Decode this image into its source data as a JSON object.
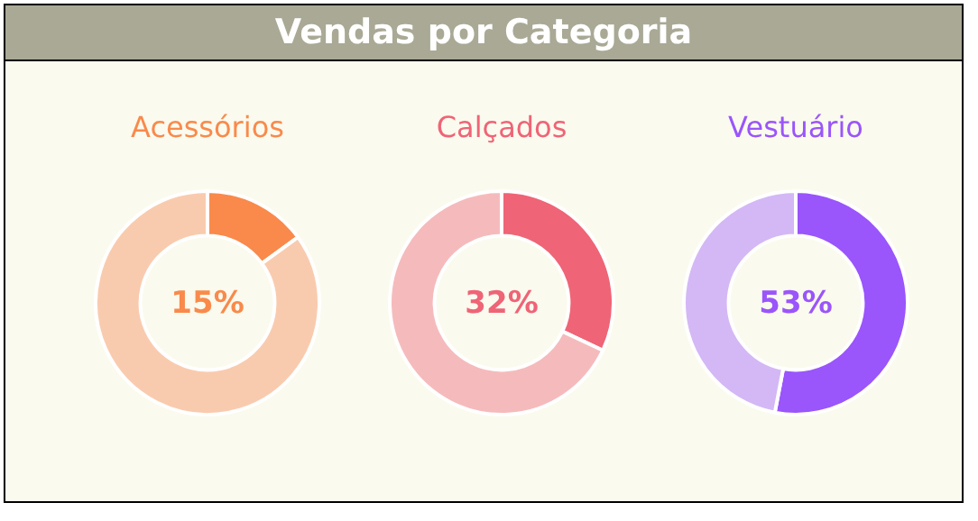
{
  "chart_data": [
    {
      "type": "other",
      "title": "Vendas por Categoria"
    },
    {
      "type": "donut",
      "title": "Acessórios",
      "categories": [
        null,
        null
      ],
      "values": [
        15,
        85
      ],
      "colors": [
        "#f98a4b",
        "#f9cbae"
      ],
      "annotations": [
        "15%"
      ]
    },
    {
      "type": "donut",
      "title": "Calçados",
      "categories": [
        null,
        null
      ],
      "values": [
        32,
        68
      ],
      "colors": [
        "#ef6476",
        "#f5bbbc"
      ],
      "annotations": [
        "32%"
      ]
    },
    {
      "type": "donut",
      "title": "Vestuário",
      "categories": [
        null,
        null
      ],
      "values": [
        53,
        47
      ],
      "colors": [
        "#9a55fb",
        "#d3b8f5"
      ],
      "annotations": [
        "53%"
      ]
    }
  ]
}
